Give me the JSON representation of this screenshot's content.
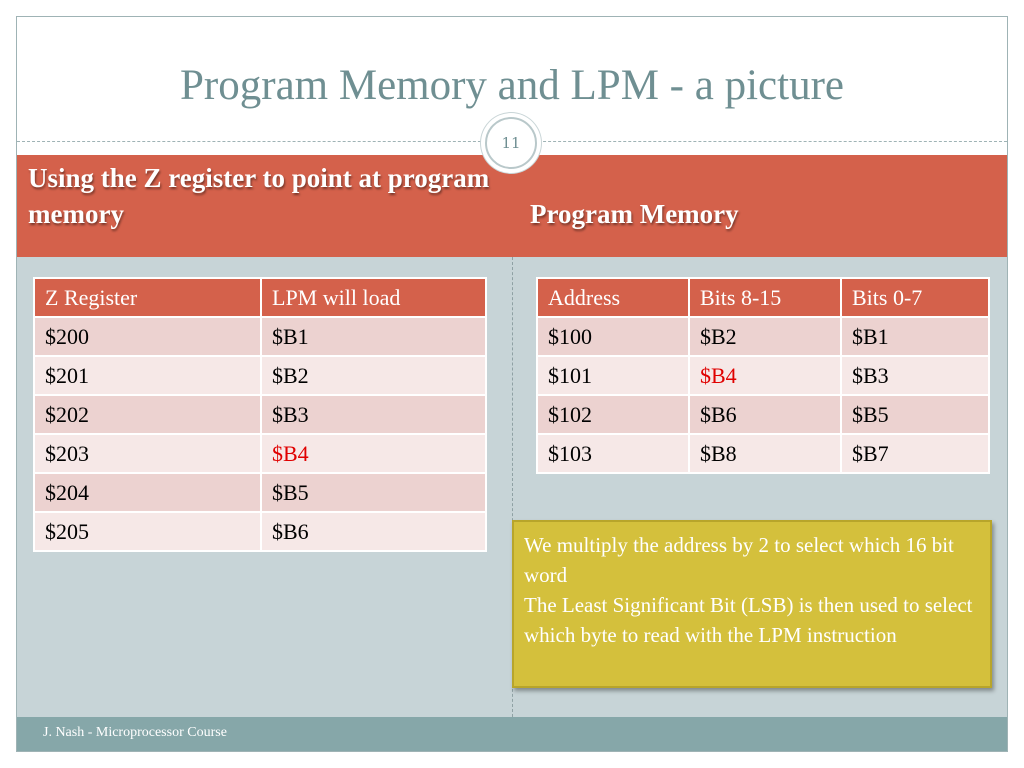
{
  "title": "Program Memory and LPM - a picture",
  "slide_number": "11",
  "header": {
    "left": "Using the Z register to point at program memory",
    "right": "Program Memory"
  },
  "left_table": {
    "columns": [
      "Z Register",
      "LPM will load"
    ],
    "rows": [
      [
        "$200",
        "$B1"
      ],
      [
        "$201",
        "$B2"
      ],
      [
        "$202",
        "$B3"
      ],
      [
        "$203",
        "$B4"
      ],
      [
        "$204",
        "$B5"
      ],
      [
        "$205",
        "$B6"
      ]
    ],
    "highlight_color": "#e00000"
  },
  "right_table": {
    "columns": [
      "Address",
      "Bits 8-15",
      "Bits 0-7"
    ],
    "rows": [
      [
        "$100",
        "$B2",
        "$B1"
      ],
      [
        "$101",
        "$B4",
        "$B3"
      ],
      [
        "$102",
        "$B6",
        "$B5"
      ],
      [
        "$103",
        "$B8",
        "$B7"
      ]
    ]
  },
  "note": {
    "line1": "We multiply the address by 2 to select which 16 bit word",
    "line2": "The Least Significant Bit (LSB) is then used to select which byte to read with the LPM instruction"
  },
  "footer": "J. Nash - Microprocessor Course",
  "colors": {
    "accent": "#d4614b",
    "title": "#6f8f92",
    "body_bg": "#c7d4d7",
    "footer_bg": "#86a7a9",
    "note_bg": "#d4c03c"
  }
}
